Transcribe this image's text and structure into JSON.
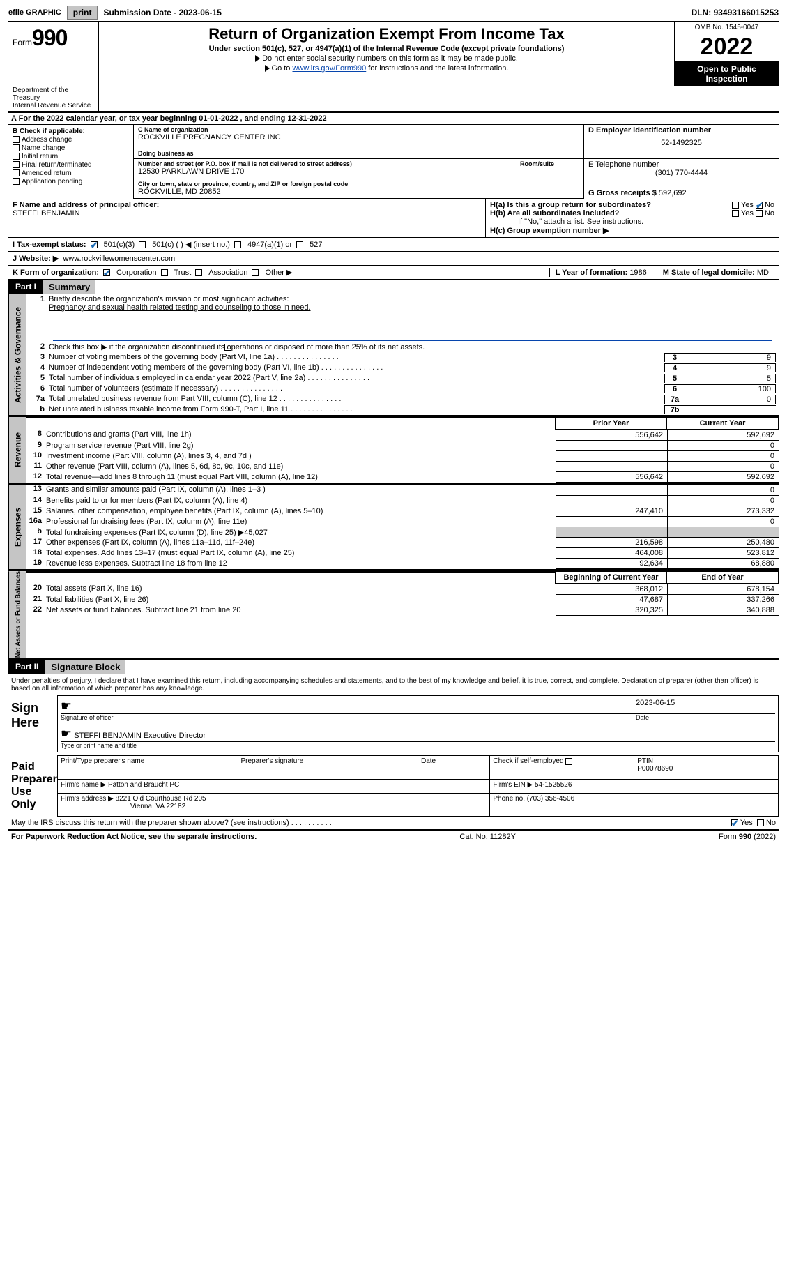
{
  "topbar": {
    "efile": "efile GRAPHIC",
    "print": "print",
    "subdate_label": "Submission Date - ",
    "subdate": "2023-06-15",
    "dln_label": "DLN: ",
    "dln": "93493166015253"
  },
  "header": {
    "form_word": "Form",
    "form_num": "990",
    "title": "Return of Organization Exempt From Income Tax",
    "sub1": "Under section 501(c), 527, or 4947(a)(1) of the Internal Revenue Code (except private foundations)",
    "sub2": "Do not enter social security numbers on this form as it may be made public.",
    "sub3_a": "Go to ",
    "sub3_link": "www.irs.gov/Form990",
    "sub3_b": " for instructions and the latest information.",
    "omb": "OMB No. 1545-0047",
    "year": "2022",
    "open": "Open to Public Inspection",
    "dept": "Department of the Treasury",
    "irs": "Internal Revenue Service"
  },
  "lineA": "For the 2022 calendar year, or tax year beginning 01-01-2022   , and ending 12-31-2022",
  "boxB": {
    "label": "B Check if applicable:",
    "opts": [
      "Address change",
      "Name change",
      "Initial return",
      "Final return/terminated",
      "Amended return",
      "Application pending"
    ]
  },
  "boxC": {
    "name_lbl": "C Name of organization",
    "name": "ROCKVILLE PREGNANCY CENTER INC",
    "dba_lbl": "Doing business as",
    "dba": "",
    "addr_lbl": "Number and street (or P.O. box if mail is not delivered to street address)",
    "room_lbl": "Room/suite",
    "addr": "12530 PARKLAWN DRIVE 170",
    "city_lbl": "City or town, state or province, country, and ZIP or foreign postal code",
    "city": "ROCKVILLE, MD  20852"
  },
  "boxD": {
    "lbl": "D Employer identification number",
    "val": "52-1492325"
  },
  "boxE": {
    "lbl": "E Telephone number",
    "val": "(301) 770-4444"
  },
  "boxG": {
    "lbl": "G Gross receipts $ ",
    "val": "592,692"
  },
  "boxF": {
    "lbl": "F Name and address of principal officer:",
    "name": "STEFFI BENJAMIN"
  },
  "boxH": {
    "ha": "H(a)  Is this a group return for subordinates?",
    "ha_yes": "Yes",
    "ha_no": "No",
    "hb": "H(b)  Are all subordinates included?",
    "hb_note": "If \"No,\" attach a list. See instructions.",
    "hc": "H(c)  Group exemption number ▶"
  },
  "taxrow": {
    "lbl": "I    Tax-exempt status:",
    "c1": "501(c)(3)",
    "c2": "501(c) (  ) ◀ (insert no.)",
    "c3": "4947(a)(1) or",
    "c4": "527"
  },
  "webrow": {
    "lbl": "J    Website: ▶",
    "val": "www.rockvillewomenscenter.com"
  },
  "korg": {
    "lbl": "K Form of organization:",
    "o1": "Corporation",
    "o2": "Trust",
    "o3": "Association",
    "o4": "Other ▶",
    "L": "L Year of formation: ",
    "Lv": "1986",
    "M": "M State of legal domicile:",
    "Mv": "MD"
  },
  "part1": {
    "hdr": "Part I",
    "title": "Summary",
    "q1a": "Briefly describe the organization's mission or most significant activities:",
    "q1b": "Pregnancy and sexual health related testing and counseling to those in need.",
    "q2": "Check this box ▶        if the organization discontinued its operations or disposed of more than 25% of its net assets.",
    "rows_gov": [
      {
        "n": "3",
        "t": "Number of voting members of the governing body (Part VI, line 1a)",
        "b": "3",
        "v": "9"
      },
      {
        "n": "4",
        "t": "Number of independent voting members of the governing body (Part VI, line 1b)",
        "b": "4",
        "v": "9"
      },
      {
        "n": "5",
        "t": "Total number of individuals employed in calendar year 2022 (Part V, line 2a)",
        "b": "5",
        "v": "5"
      },
      {
        "n": "6",
        "t": "Total number of volunteers (estimate if necessary)",
        "b": "6",
        "v": "100"
      },
      {
        "n": "7a",
        "t": "Total unrelated business revenue from Part VIII, column (C), line 12",
        "b": "7a",
        "v": "0"
      },
      {
        "n": "b",
        "t": "Net unrelated business taxable income from Form 990-T, Part I, line 11",
        "b": "7b",
        "v": ""
      }
    ],
    "hdr_prior": "Prior Year",
    "hdr_curr": "Current Year",
    "rev": [
      {
        "n": "8",
        "t": "Contributions and grants (Part VIII, line 1h)",
        "p": "556,642",
        "c": "592,692"
      },
      {
        "n": "9",
        "t": "Program service revenue (Part VIII, line 2g)",
        "p": "",
        "c": "0"
      },
      {
        "n": "10",
        "t": "Investment income (Part VIII, column (A), lines 3, 4, and 7d )",
        "p": "",
        "c": "0"
      },
      {
        "n": "11",
        "t": "Other revenue (Part VIII, column (A), lines 5, 6d, 8c, 9c, 10c, and 11e)",
        "p": "",
        "c": "0"
      },
      {
        "n": "12",
        "t": "Total revenue—add lines 8 through 11 (must equal Part VIII, column (A), line 12)",
        "p": "556,642",
        "c": "592,692"
      }
    ],
    "exp": [
      {
        "n": "13",
        "t": "Grants and similar amounts paid (Part IX, column (A), lines 1–3 )",
        "p": "",
        "c": "0"
      },
      {
        "n": "14",
        "t": "Benefits paid to or for members (Part IX, column (A), line 4)",
        "p": "",
        "c": "0"
      },
      {
        "n": "15",
        "t": "Salaries, other compensation, employee benefits (Part IX, column (A), lines 5–10)",
        "p": "247,410",
        "c": "273,332"
      },
      {
        "n": "16a",
        "t": "Professional fundraising fees (Part IX, column (A), line 11e)",
        "p": "",
        "c": "0"
      },
      {
        "n": "b",
        "t": "Total fundraising expenses (Part IX, column (D), line 25) ▶45,027",
        "p": null,
        "c": null
      },
      {
        "n": "17",
        "t": "Other expenses (Part IX, column (A), lines 11a–11d, 11f–24e)",
        "p": "216,598",
        "c": "250,480"
      },
      {
        "n": "18",
        "t": "Total expenses. Add lines 13–17 (must equal Part IX, column (A), line 25)",
        "p": "464,008",
        "c": "523,812"
      },
      {
        "n": "19",
        "t": "Revenue less expenses. Subtract line 18 from line 12",
        "p": "92,634",
        "c": "68,880"
      }
    ],
    "hdr_beg": "Beginning of Current Year",
    "hdr_end": "End of Year",
    "net": [
      {
        "n": "20",
        "t": "Total assets (Part X, line 16)",
        "p": "368,012",
        "c": "678,154"
      },
      {
        "n": "21",
        "t": "Total liabilities (Part X, line 26)",
        "p": "47,687",
        "c": "337,266"
      },
      {
        "n": "22",
        "t": "Net assets or fund balances. Subtract line 21 from line 20",
        "p": "320,325",
        "c": "340,888"
      }
    ]
  },
  "vtabs": {
    "gov": "Activities & Governance",
    "rev": "Revenue",
    "exp": "Expenses",
    "net": "Net Assets or Fund Balances"
  },
  "part2": {
    "hdr": "Part II",
    "title": "Signature Block",
    "decl": "Under penalties of perjury, I declare that I have examined this return, including accompanying schedules and statements, and to the best of my knowledge and belief, it is true, correct, and complete. Declaration of preparer (other than officer) is based on all information of which preparer has any knowledge.",
    "sign_here": "Sign Here",
    "sig_off": "Signature of officer",
    "date_lbl": "Date",
    "date": "2023-06-15",
    "name": "STEFFI BENJAMIN  Executive Director",
    "name_lbl": "Type or print name and title",
    "paid": "Paid Preparer Use Only",
    "pt_name_lbl": "Print/Type preparer's name",
    "pt_sig_lbl": "Preparer's signature",
    "check_se": "Check        if self-employed",
    "ptin_lbl": "PTIN",
    "ptin": "P00078690",
    "firm_name_lbl": "Firm's name    ▶ ",
    "firm_name": "Patton and Braucht PC",
    "firm_ein_lbl": "Firm's EIN ▶ ",
    "firm_ein": "54-1525526",
    "firm_addr_lbl": "Firm's address ▶ ",
    "firm_addr1": "8221 Old Courthouse Rd 205",
    "firm_addr2": "Vienna, VA  22182",
    "phone_lbl": "Phone no. ",
    "phone": "(703) 356-4506",
    "may": "May the IRS discuss this return with the preparer shown above? (see instructions)",
    "may_yes": "Yes",
    "may_no": "No"
  },
  "footer": {
    "left": "For Paperwork Reduction Act Notice, see the separate instructions.",
    "mid": "Cat. No. 11282Y",
    "right": "Form 990 (2022)"
  },
  "colors": {
    "link": "#0645ad",
    "check": "#1a6bb5",
    "grey": "#c5c5c5"
  }
}
